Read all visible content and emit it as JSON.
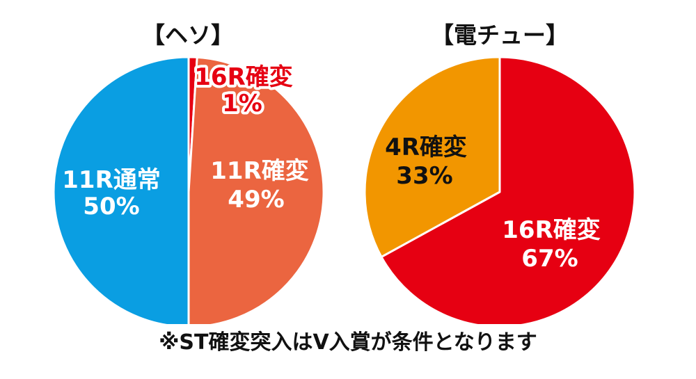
{
  "chart_data": [
    {
      "type": "pie",
      "title": "【ヘソ】",
      "slices": [
        {
          "name": "11R通常",
          "value": 50,
          "label_name": "11R通常",
          "label_value": "50%",
          "color": "#0a9ee2",
          "label_color": "#ffffff"
        },
        {
          "name": "16R確変",
          "value": 1,
          "label_name": "16R確変",
          "label_value": "1%",
          "color": "#e60012",
          "label_color": "#e60012"
        },
        {
          "name": "11R確変",
          "value": 49,
          "label_name": "11R確変",
          "label_value": "49%",
          "color": "#eb6540",
          "label_color": "#ffffff"
        }
      ]
    },
    {
      "type": "pie",
      "title": "【電チュー】",
      "slices": [
        {
          "name": "16R確変",
          "value": 67,
          "label_name": "16R確変",
          "label_value": "67%",
          "color": "#e60012",
          "label_color": "#ffffff"
        },
        {
          "name": "4R確変",
          "value": 33,
          "label_name": "4R確変",
          "label_value": "33%",
          "color": "#f29600",
          "label_color": "#111111"
        }
      ]
    }
  ],
  "note": "※ST確変突入はV入賞が条件となります"
}
